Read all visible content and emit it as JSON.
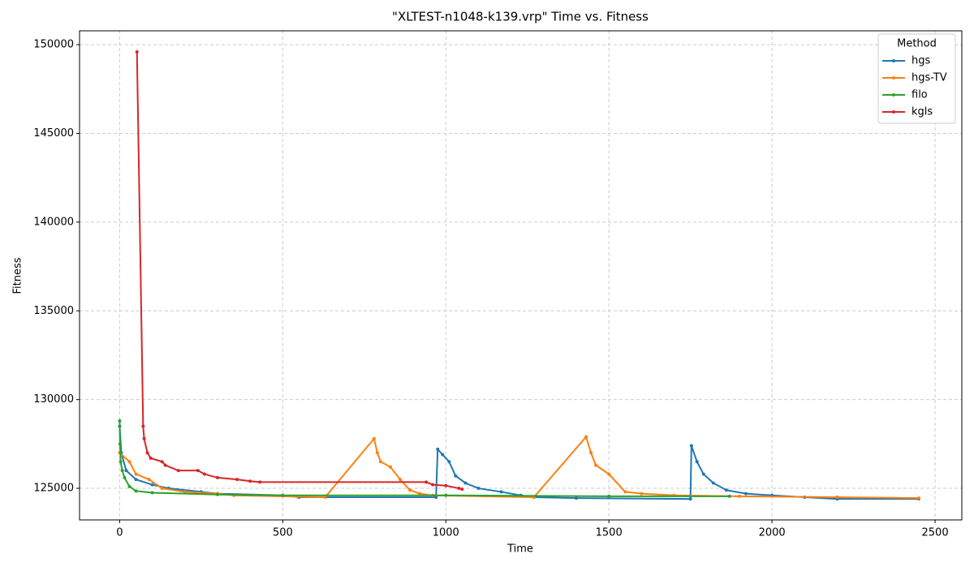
{
  "chart_data": {
    "type": "line",
    "title": "\"XLTEST-n1048-k139.vrp\" Time vs. Fitness",
    "x_label": "Time",
    "y_label": "Fitness",
    "legend_title": "Method",
    "legend": "upper right",
    "grid": true,
    "xlim": [
      -123,
      2582
    ],
    "ylim": [
      123220,
      150780
    ],
    "xticks": [
      0,
      500,
      1000,
      1500,
      2000,
      2500
    ],
    "yticks": [
      125000,
      130000,
      135000,
      140000,
      145000,
      150000
    ],
    "series": [
      {
        "name": "hgs",
        "color": "#1f77b4",
        "x": [
          0,
          5,
          20,
          50,
          100,
          150,
          250,
          300,
          500,
          550,
          970,
          975,
          990,
          1010,
          1030,
          1060,
          1100,
          1170,
          1230,
          1270,
          1400,
          1750,
          1753,
          1770,
          1790,
          1820,
          1860,
          1920,
          2000,
          2100,
          2200,
          2450
        ],
        "values": [
          128500,
          127000,
          126000,
          125500,
          125200,
          125000,
          124800,
          124700,
          124600,
          124500,
          124500,
          127200,
          126900,
          126500,
          125700,
          125300,
          125000,
          124800,
          124600,
          124500,
          124450,
          124400,
          127400,
          126500,
          125800,
          125300,
          124900,
          124700,
          124600,
          124500,
          124400,
          124400
        ]
      },
      {
        "name": "hgs-TV",
        "color": "#ff7f0e",
        "x": [
          0,
          30,
          50,
          90,
          130,
          200,
          300,
          350,
          630,
          780,
          790,
          800,
          830,
          860,
          890,
          920,
          960,
          1270,
          1430,
          1445,
          1460,
          1500,
          1550,
          1600,
          1700,
          1900,
          2200,
          2450
        ],
        "values": [
          127000,
          126500,
          125800,
          125500,
          125000,
          124800,
          124700,
          124600,
          124500,
          127800,
          127000,
          126500,
          126200,
          125500,
          124900,
          124700,
          124600,
          124500,
          127900,
          127000,
          126300,
          125800,
          124800,
          124700,
          124600,
          124550,
          124500,
          124450
        ]
      },
      {
        "name": "filo",
        "color": "#2ca02c",
        "x": [
          0,
          1,
          3,
          8,
          15,
          30,
          50,
          100,
          300,
          500,
          1000,
          1500,
          1870
        ],
        "values": [
          128800,
          127500,
          126500,
          126000,
          125600,
          125100,
          124850,
          124750,
          124650,
          124600,
          124600,
          124550,
          124550
        ]
      },
      {
        "name": "kgls",
        "color": "#d62728",
        "x": [
          53,
          72,
          75,
          85,
          95,
          130,
          140,
          180,
          240,
          260,
          300,
          360,
          400,
          430,
          940,
          960,
          1000,
          1040,
          1050
        ],
        "values": [
          149600,
          128500,
          127800,
          127000,
          126700,
          126500,
          126300,
          126000,
          126000,
          125800,
          125600,
          125500,
          125400,
          125350,
          125350,
          125200,
          125150,
          125000,
          124950
        ]
      }
    ]
  }
}
